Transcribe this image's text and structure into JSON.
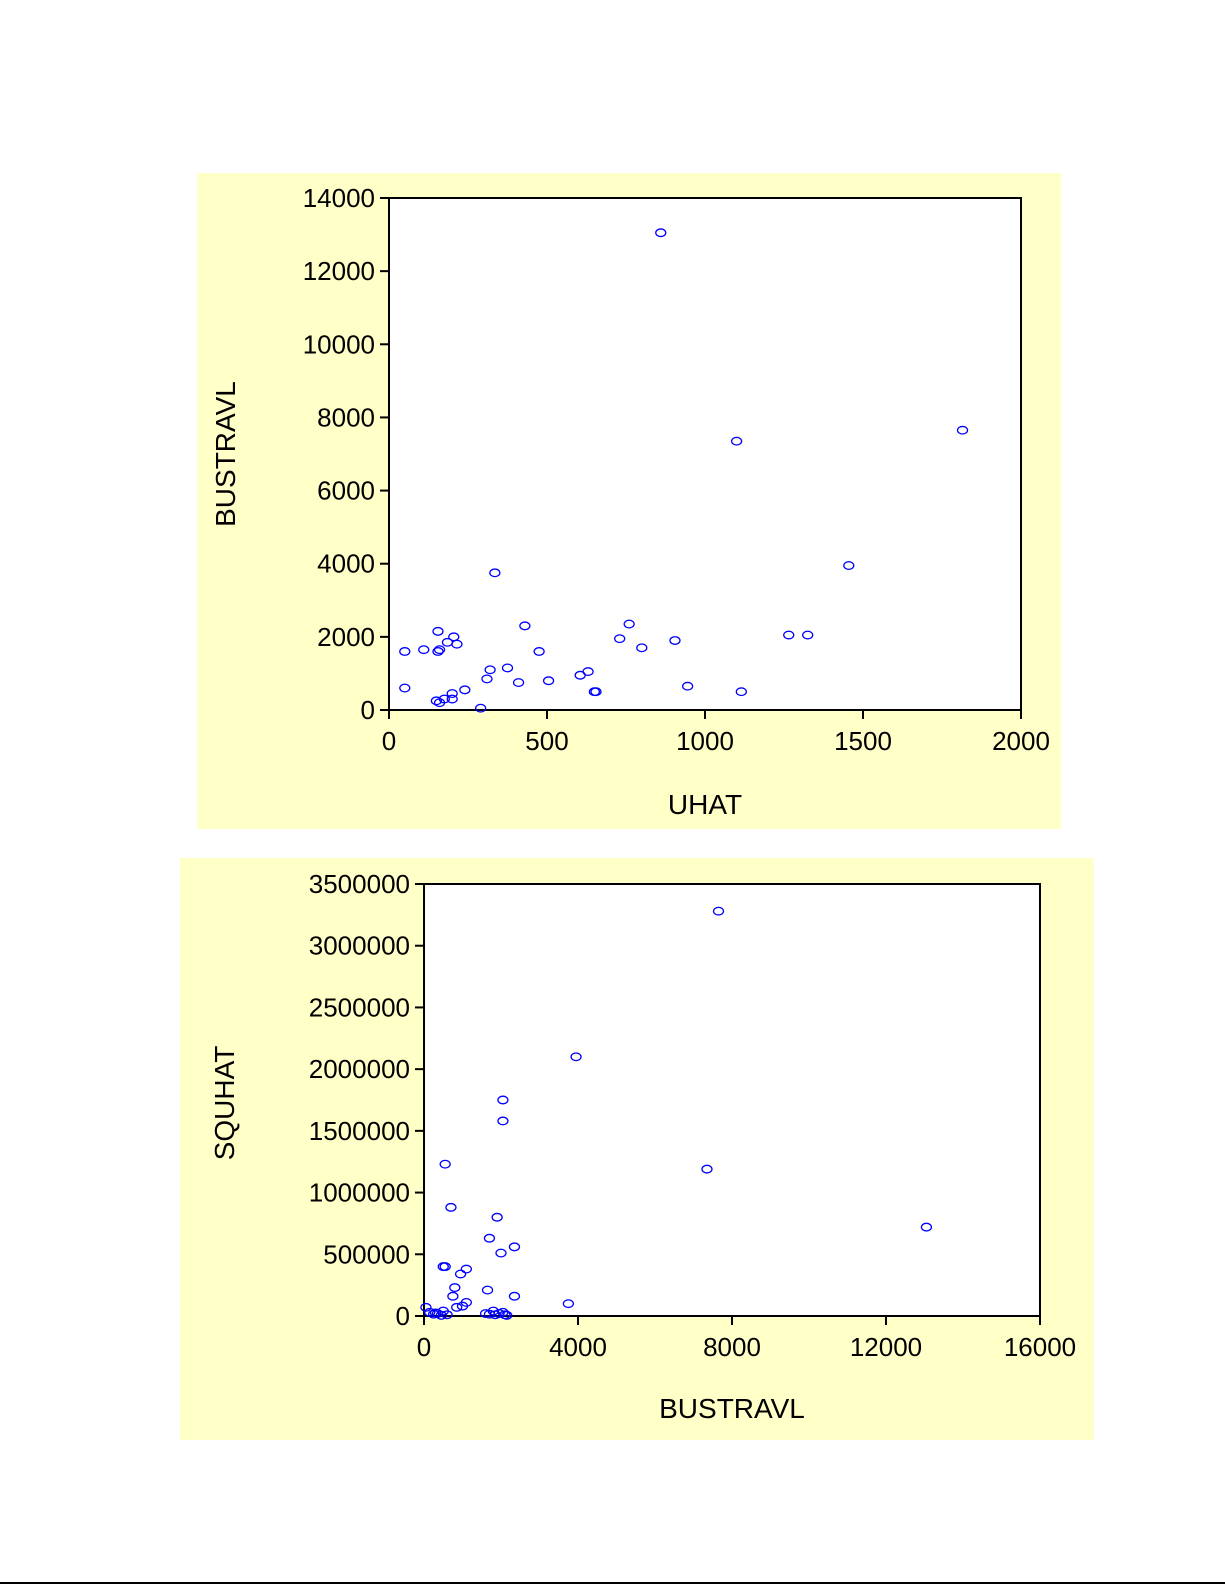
{
  "chart_data": [
    {
      "type": "scatter",
      "xlabel": "UHAT",
      "ylabel": "BUSTRAVL",
      "xlim": [
        0,
        2000
      ],
      "ylim": [
        0,
        14000
      ],
      "xticks": [
        0,
        500,
        1000,
        1500,
        2000
      ],
      "yticks": [
        0,
        2000,
        4000,
        6000,
        8000,
        10000,
        12000,
        14000
      ],
      "grid": false,
      "colors": {
        "marker": "#0000ff",
        "background": "#ffffc8",
        "plot": "#ffffff"
      },
      "points": [
        [
          860,
          13050
        ],
        [
          1100,
          7350
        ],
        [
          1815,
          7650
        ],
        [
          1455,
          3950
        ],
        [
          335,
          3750
        ],
        [
          50,
          1600
        ],
        [
          110,
          1650
        ],
        [
          155,
          2150
        ],
        [
          160,
          1650
        ],
        [
          155,
          1600
        ],
        [
          185,
          1850
        ],
        [
          205,
          2000
        ],
        [
          215,
          1800
        ],
        [
          430,
          2300
        ],
        [
          475,
          1600
        ],
        [
          730,
          1950
        ],
        [
          760,
          2350
        ],
        [
          800,
          1700
        ],
        [
          905,
          1900
        ],
        [
          1265,
          2050
        ],
        [
          1325,
          2050
        ],
        [
          320,
          1100
        ],
        [
          310,
          850
        ],
        [
          375,
          1150
        ],
        [
          410,
          750
        ],
        [
          505,
          800
        ],
        [
          605,
          950
        ],
        [
          630,
          1050
        ],
        [
          650,
          500
        ],
        [
          655,
          500
        ],
        [
          945,
          650
        ],
        [
          1115,
          500
        ],
        [
          50,
          600
        ],
        [
          150,
          250
        ],
        [
          160,
          200
        ],
        [
          175,
          300
        ],
        [
          200,
          450
        ],
        [
          200,
          300
        ],
        [
          240,
          550
        ],
        [
          290,
          50
        ]
      ]
    },
    {
      "type": "scatter",
      "xlabel": "BUSTRAVL",
      "ylabel": "SQUHAT",
      "xlim": [
        0,
        16000
      ],
      "ylim": [
        0,
        3500000
      ],
      "xticks": [
        0,
        4000,
        8000,
        12000,
        16000
      ],
      "yticks": [
        0,
        500000,
        1000000,
        1500000,
        2000000,
        2500000,
        3000000,
        3500000
      ],
      "grid": false,
      "colors": {
        "marker": "#0000ff",
        "background": "#ffffc8",
        "plot": "#ffffff"
      },
      "points": [
        [
          7650,
          3280000
        ],
        [
          3950,
          2100000
        ],
        [
          2050,
          1750000
        ],
        [
          2050,
          1580000
        ],
        [
          550,
          1230000
        ],
        [
          7350,
          1190000
        ],
        [
          700,
          880000
        ],
        [
          1900,
          800000
        ],
        [
          13050,
          720000
        ],
        [
          1700,
          630000
        ],
        [
          2350,
          560000
        ],
        [
          2000,
          510000
        ],
        [
          550,
          400000
        ],
        [
          500,
          400000
        ],
        [
          1100,
          380000
        ],
        [
          950,
          340000
        ],
        [
          800,
          230000
        ],
        [
          1650,
          210000
        ],
        [
          750,
          160000
        ],
        [
          2350,
          160000
        ],
        [
          1100,
          110000
        ],
        [
          3750,
          100000
        ],
        [
          1000,
          80000
        ],
        [
          850,
          70000
        ],
        [
          50,
          70000
        ],
        [
          150,
          30000
        ],
        [
          300,
          25000
        ],
        [
          350,
          20000
        ],
        [
          250,
          15000
        ],
        [
          500,
          40000
        ],
        [
          600,
          10000
        ],
        [
          450,
          5000
        ],
        [
          1600,
          20000
        ],
        [
          1700,
          15000
        ],
        [
          1800,
          40000
        ],
        [
          1850,
          10000
        ],
        [
          1950,
          20000
        ],
        [
          2100,
          10000
        ],
        [
          2150,
          5000
        ],
        [
          2050,
          30000
        ]
      ]
    }
  ]
}
